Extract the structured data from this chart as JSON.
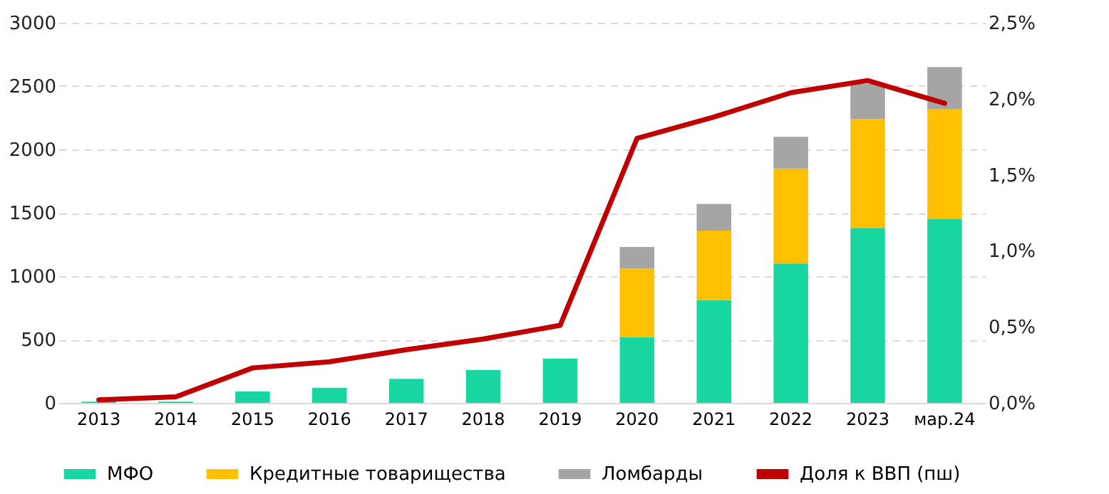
{
  "chart_data": {
    "type": "bar",
    "stacked": true,
    "categories": [
      "2013",
      "2014",
      "2015",
      "2016",
      "2017",
      "2018",
      "2019",
      "2020",
      "2021",
      "2022",
      "2023",
      "мар.24"
    ],
    "series": [
      {
        "name": "МФО",
        "color": "#17d6a0",
        "values": [
          10,
          10,
          90,
          120,
          190,
          260,
          350,
          520,
          810,
          1100,
          1380,
          1450
        ]
      },
      {
        "name": "Кредитные товарищества",
        "color": "#ffc000",
        "values": [
          null,
          null,
          null,
          null,
          null,
          null,
          null,
          540,
          550,
          750,
          860,
          870
        ]
      },
      {
        "name": "Ломбарды",
        "color": "#a5a5a5",
        "values": [
          null,
          null,
          null,
          null,
          null,
          null,
          null,
          170,
          210,
          250,
          280,
          330
        ]
      },
      {
        "name": "Доля к ВВП (пш)",
        "color": "#c00000",
        "type": "line",
        "axis": "y2",
        "values": [
          0.02,
          0.04,
          0.23,
          0.27,
          0.35,
          0.42,
          0.51,
          1.74,
          1.88,
          2.04,
          2.12,
          1.97
        ]
      }
    ],
    "ylim": [
      0,
      3000
    ],
    "yticks": [
      0,
      500,
      1000,
      1500,
      2000,
      2500,
      3000
    ],
    "y2lim": [
      0,
      2.5
    ],
    "y2ticks": [
      {
        "value": 0,
        "label": "0,0%"
      },
      {
        "value": 0.5,
        "label": "0,5%"
      },
      {
        "value": 1,
        "label": "1,0%"
      },
      {
        "value": 1.5,
        "label": "1,5%"
      },
      {
        "value": 2,
        "label": "2,0%"
      },
      {
        "value": 2.5,
        "label": "2,5%"
      }
    ],
    "grid": "y",
    "legend": "bottom",
    "line_style": "solid",
    "marker": "none"
  }
}
